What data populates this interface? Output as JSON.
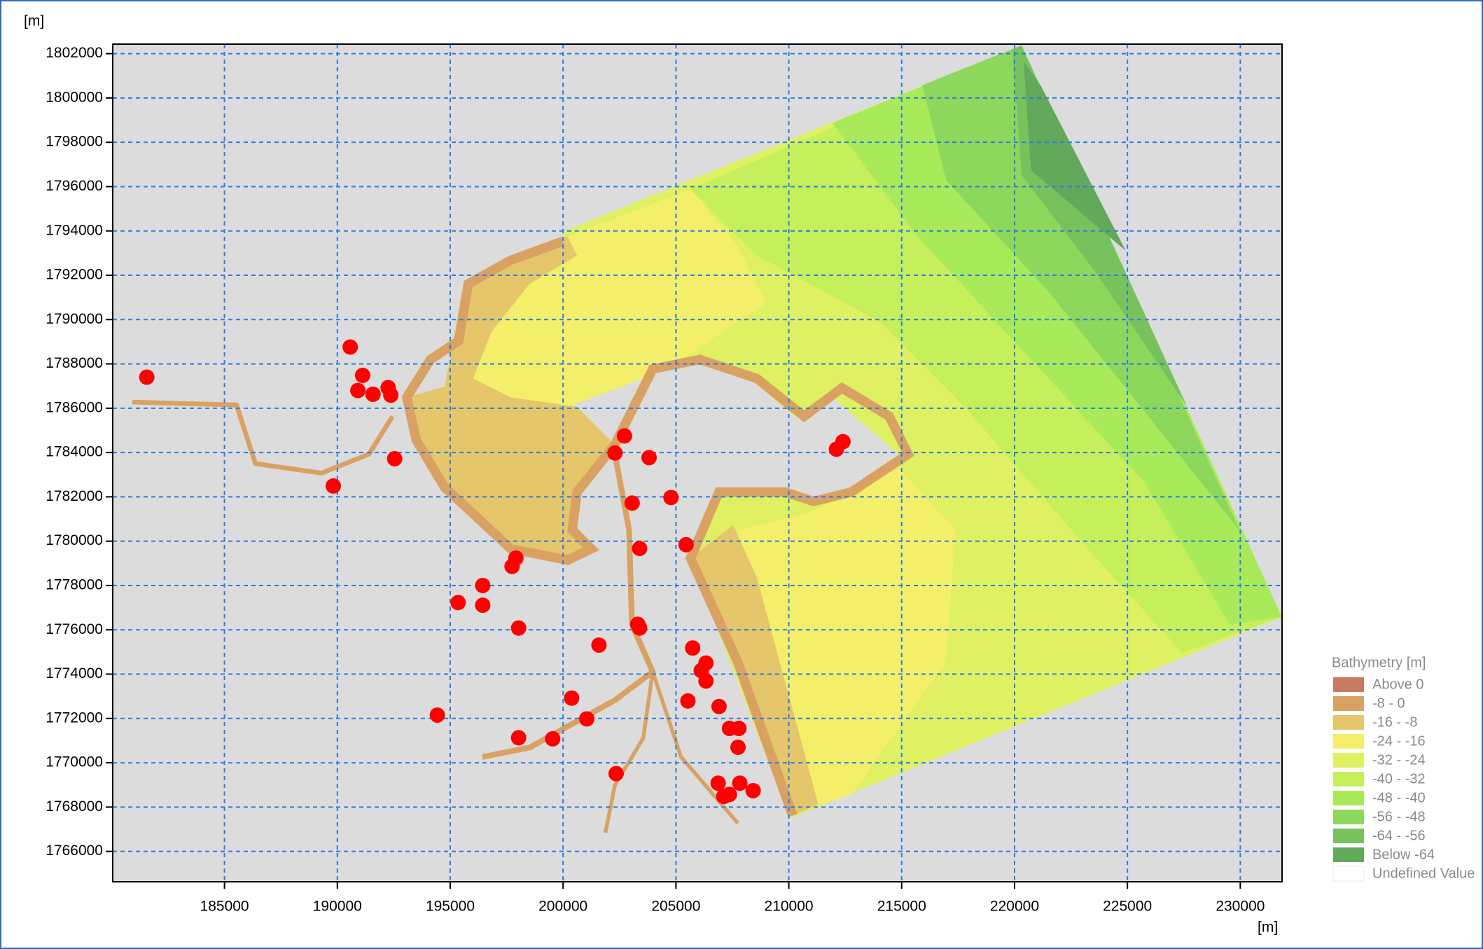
{
  "chart_data": {
    "type": "scatter",
    "x_label": "[m]",
    "y_label": "[m]",
    "xlim": [
      180050,
      231850
    ],
    "ylim": [
      1764630,
      1802430
    ],
    "xticks": [
      185000,
      190000,
      195000,
      200000,
      205000,
      210000,
      215000,
      220000,
      225000,
      230000
    ],
    "yticks": [
      1766000,
      1768000,
      1770000,
      1772000,
      1774000,
      1776000,
      1778000,
      1780000,
      1782000,
      1784000,
      1786000,
      1788000,
      1790000,
      1792000,
      1794000,
      1796000,
      1798000,
      1800000,
      1802000
    ],
    "grid": true,
    "color": "#ff0000",
    "x": [
      181560,
      190570,
      191120,
      190910,
      191580,
      192250,
      192370,
      192540,
      189820,
      202300,
      202720,
      203810,
      203060,
      204780,
      203390,
      205450,
      197910,
      197740,
      196440,
      195350,
      196440,
      198030,
      203310,
      203390,
      201590,
      205740,
      206330,
      206120,
      206330,
      200380,
      205530,
      206910,
      201050,
      194430,
      198030,
      199540,
      207370,
      207790,
      207750,
      202350,
      206870,
      207830,
      208420,
      207120,
      207370,
      212110,
      212400
    ],
    "values": [
      1787400,
      1788760,
      1787480,
      1786800,
      1786630,
      1786930,
      1786590,
      1783720,
      1782490,
      1783980,
      1784750,
      1783770,
      1781720,
      1781970,
      1779670,
      1779840,
      1779240,
      1778860,
      1778000,
      1777230,
      1777110,
      1776080,
      1776250,
      1776080,
      1775310,
      1775180,
      1774500,
      1774160,
      1773690,
      1772920,
      1772790,
      1772540,
      1771980,
      1772150,
      1771130,
      1771080,
      1771550,
      1771550,
      1770700,
      1769510,
      1769080,
      1769080,
      1768740,
      1768480,
      1768570,
      1784150,
      1784490
    ],
    "legend": {
      "title": "Bathymetry [m]",
      "items": [
        {
          "label": "Above 0",
          "color": "#c97b61"
        },
        {
          "label": "-8 - 0",
          "color": "#d9a263"
        },
        {
          "label": "-16 - -8",
          "color": "#e6c66a"
        },
        {
          "label": "-24 - -16",
          "color": "#f4ef6b"
        },
        {
          "label": "-32 - -24",
          "color": "#dff062"
        },
        {
          "label": "-40 - -32",
          "color": "#c5ef5b"
        },
        {
          "label": "-48 - -40",
          "color": "#a9ea5a"
        },
        {
          "label": "-56 - -48",
          "color": "#8dd75d"
        },
        {
          "label": "-64 - -56",
          "color": "#78c25d"
        },
        {
          "label": "Below -64",
          "color": "#62a95b"
        },
        {
          "label": "Undefined Value",
          "color": "#ffffff"
        }
      ]
    }
  }
}
